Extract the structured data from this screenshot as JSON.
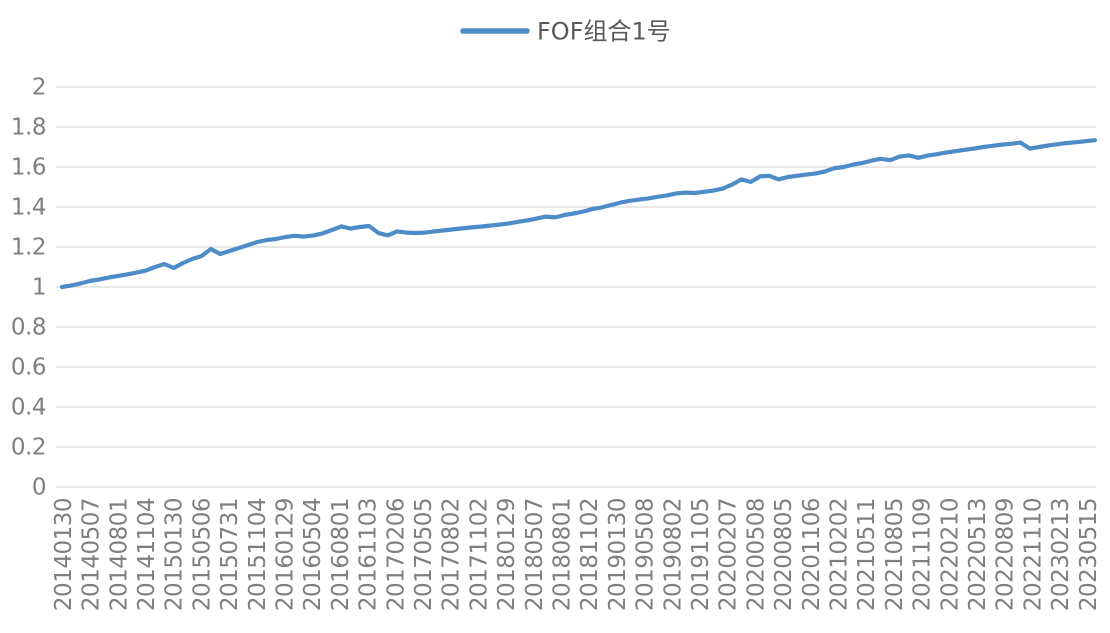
{
  "legend": {
    "label": "FOF组合1号"
  },
  "colors": {
    "line": "#4E8CC8",
    "grid": "#D9D9D9",
    "axis_text": "#7F7F7F",
    "legend_text": "#595959",
    "background": "#FFFFFF"
  },
  "chart_data": {
    "type": "line",
    "title": "",
    "xlabel": "",
    "ylabel": "",
    "legend_entries": [
      "FOF组合1号"
    ],
    "legend_position": "top-center",
    "grid": "horizontal",
    "ylim": [
      0,
      2
    ],
    "y_tick_values": [
      2,
      1.8,
      1.6,
      1.4,
      1.2,
      1,
      0.8,
      0.6,
      0.4,
      0.2,
      0
    ],
    "y_tick_labels": [
      "2",
      "1.8",
      "1.6",
      "1.4",
      "1.2",
      "1",
      "0.8",
      "0.6",
      "0.4",
      "0.2",
      "0"
    ],
    "x_tick_labels": [
      "20140130",
      "20140507",
      "20140801",
      "20141104",
      "20150130",
      "20150506",
      "20150731",
      "20151104",
      "20160129",
      "20160504",
      "20160801",
      "20161103",
      "20170206",
      "20170505",
      "20170802",
      "20171102",
      "20180129",
      "20180507",
      "20180801",
      "20181102",
      "20190130",
      "20190508",
      "20190802",
      "20191105",
      "20200207",
      "20200508",
      "20200805",
      "20201106",
      "20210202",
      "20210511",
      "20210805",
      "20211109",
      "20220210",
      "20220513",
      "20220809",
      "20221110",
      "20230213",
      "20230515"
    ],
    "series": [
      {
        "name": "FOF组合1号",
        "start_value": 1.0,
        "end_value": 1.73,
        "values": [
          1.0,
          1.008,
          1.018,
          1.03,
          1.038,
          1.047,
          1.055,
          1.063,
          1.072,
          1.082,
          1.1,
          1.115,
          1.095,
          1.12,
          1.14,
          1.155,
          1.19,
          1.165,
          1.18,
          1.195,
          1.21,
          1.225,
          1.235,
          1.24,
          1.25,
          1.256,
          1.252,
          1.258,
          1.268,
          1.285,
          1.303,
          1.292,
          1.3,
          1.305,
          1.27,
          1.258,
          1.278,
          1.272,
          1.27,
          1.272,
          1.278,
          1.283,
          1.288,
          1.293,
          1.298,
          1.302,
          1.307,
          1.312,
          1.318,
          1.326,
          1.333,
          1.342,
          1.352,
          1.348,
          1.36,
          1.368,
          1.377,
          1.39,
          1.398,
          1.41,
          1.422,
          1.431,
          1.437,
          1.443,
          1.451,
          1.458,
          1.468,
          1.472,
          1.47,
          1.476,
          1.482,
          1.492,
          1.512,
          1.538,
          1.525,
          1.553,
          1.556,
          1.538,
          1.55,
          1.556,
          1.562,
          1.568,
          1.578,
          1.594,
          1.6,
          1.612,
          1.62,
          1.632,
          1.641,
          1.634,
          1.652,
          1.658,
          1.646,
          1.657,
          1.664,
          1.672,
          1.679,
          1.686,
          1.692,
          1.7,
          1.706,
          1.712,
          1.716,
          1.722,
          1.692,
          1.7,
          1.708,
          1.714,
          1.72,
          1.724,
          1.729,
          1.734
        ]
      }
    ]
  }
}
